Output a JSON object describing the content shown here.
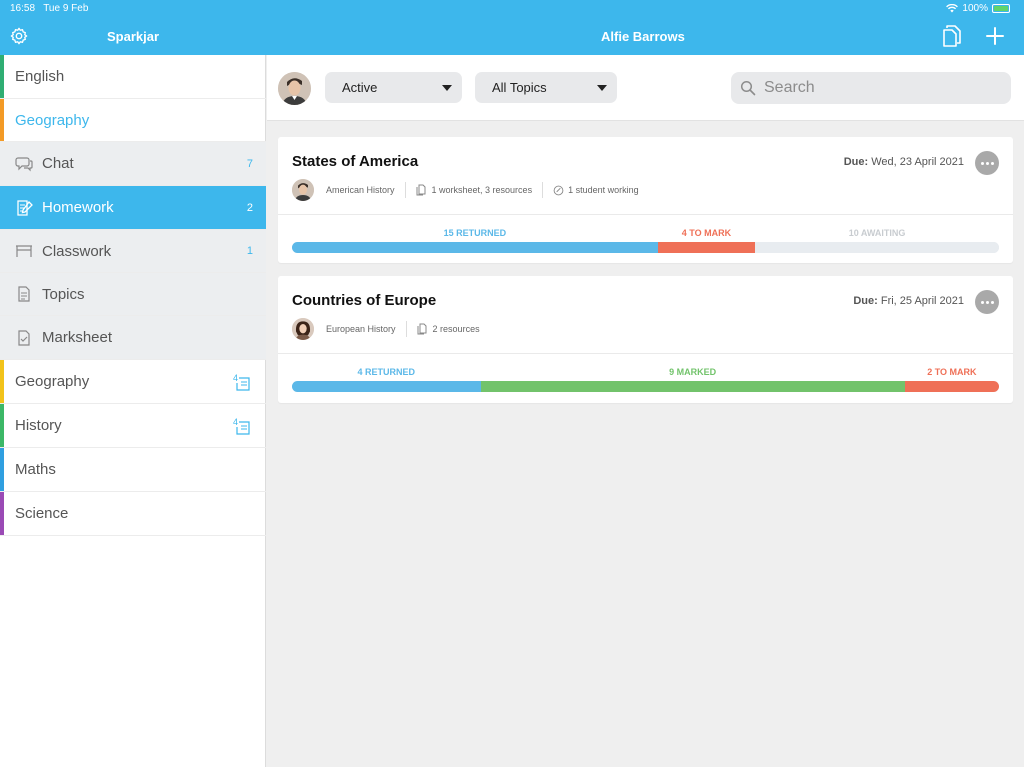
{
  "status": {
    "time": "16:58",
    "date": "Tue 9 Feb",
    "battery": "100%"
  },
  "header": {
    "app_name": "Sparkjar",
    "user_name": "Alfie Barrows"
  },
  "colors": {
    "accent": "#3db7ec",
    "returned": "#5bb8e8",
    "to_mark": "#ef7057",
    "marked": "#72c36b",
    "awaiting": "#e8ecf0"
  },
  "sidebar": {
    "subjects_top": [
      {
        "label": "English",
        "color": "#2fae73"
      },
      {
        "label": "Geography",
        "color": "#f39a26"
      }
    ],
    "sub_items": [
      {
        "label": "Chat",
        "icon": "chat-icon",
        "count": "7"
      },
      {
        "label": "Homework",
        "icon": "homework-icon",
        "count": "2"
      },
      {
        "label": "Classwork",
        "icon": "classwork-icon",
        "count": "1"
      },
      {
        "label": "Topics",
        "icon": "topics-icon",
        "count": ""
      },
      {
        "label": "Marksheet",
        "icon": "marksheet-icon",
        "count": ""
      }
    ],
    "subjects_bottom": [
      {
        "label": "Geography",
        "color": "#f2c31a"
      },
      {
        "label": "History",
        "color": "#3cb867"
      },
      {
        "label": "Maths",
        "color": "#2f9fe0"
      },
      {
        "label": "Science",
        "color": "#9a4ab5"
      }
    ]
  },
  "filters": {
    "status": "Active",
    "topics": "All Topics",
    "search_placeholder": "Search"
  },
  "assignments": [
    {
      "title": "States of America",
      "due_label": "Due:",
      "due_date": "Wed, 23 April 2021",
      "topic": "American History",
      "resources": "1 worksheet, 3 resources",
      "working": "1 student working",
      "segments": [
        {
          "label": "15 RETURNED",
          "count": 15,
          "kind": "returned"
        },
        {
          "label": "4 TO MARK",
          "count": 4,
          "kind": "to_mark"
        },
        {
          "label": "10 AWAITING",
          "count": 10,
          "kind": "awaiting"
        }
      ]
    },
    {
      "title": "Countries of Europe",
      "due_label": "Due:",
      "due_date": "Fri, 25 April 2021",
      "topic": "European History",
      "resources": "2 resources",
      "working": "",
      "segments": [
        {
          "label": "4 RETURNED",
          "count": 4,
          "kind": "returned"
        },
        {
          "label": "9 MARKED",
          "count": 9,
          "kind": "marked"
        },
        {
          "label": "2 TO MARK",
          "count": 2,
          "kind": "to_mark"
        }
      ]
    }
  ]
}
